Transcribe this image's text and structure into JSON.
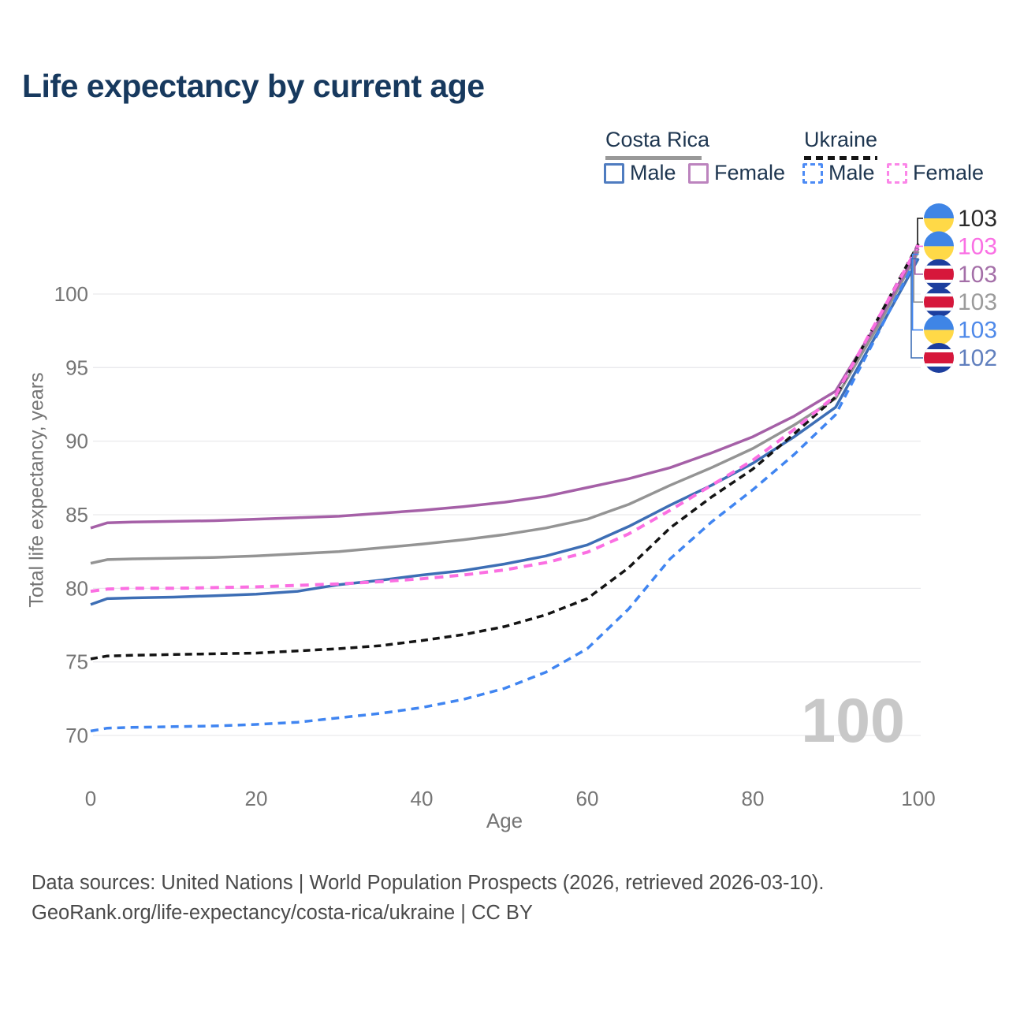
{
  "title": "Life expectancy by current age",
  "watermark": "100",
  "legend": {
    "groups": [
      {
        "label": "Costa Rica",
        "underline_color": "#999999",
        "underline_dashed": false,
        "items": [
          {
            "label": "Male",
            "color": "#4f7cc0",
            "dashed": false
          },
          {
            "label": "Female",
            "color": "#bc84be",
            "dashed": false
          }
        ]
      },
      {
        "label": "Ukraine",
        "underline_color": "#141414",
        "underline_dashed": true,
        "items": [
          {
            "label": "Male",
            "color": "#4c8bf5",
            "dashed": true
          },
          {
            "label": "Female",
            "color": "#fb86e8",
            "dashed": true
          }
        ]
      }
    ]
  },
  "axes": {
    "y_label": "Total life expectancy, years",
    "x_label": "Age",
    "y_ticks": [
      70,
      75,
      80,
      85,
      90,
      95,
      100
    ],
    "x_ticks": [
      0,
      20,
      40,
      60,
      80,
      100
    ]
  },
  "footer": {
    "line1": "Data sources: United Nations | World Population Prospects (2026, retrieved 2026-03-10).",
    "line2": "GeoRank.org/life-expectancy/costa-rica/ukraine | CC BY"
  },
  "chart_data": {
    "type": "line",
    "title": "Life expectancy by current age",
    "xlabel": "Age",
    "ylabel": "Total life expectancy, years",
    "xlim": [
      0,
      100
    ],
    "ylim": [
      69,
      104
    ],
    "grid": "horizontal",
    "legend_position": "top-right",
    "x": [
      0,
      2,
      5,
      10,
      15,
      20,
      25,
      30,
      35,
      40,
      45,
      50,
      55,
      60,
      65,
      70,
      75,
      80,
      85,
      90,
      95,
      100
    ],
    "series": [
      {
        "id": "costa_rica_both",
        "name": "Costa Rica — Both sexes",
        "country": "Costa Rica",
        "sex": "both",
        "color": "#949494",
        "dash": null,
        "width": 3.5,
        "values": [
          81.7,
          81.95,
          82.0,
          82.05,
          82.1,
          82.2,
          82.35,
          82.5,
          82.75,
          83.0,
          83.3,
          83.65,
          84.1,
          84.7,
          85.7,
          87.0,
          88.2,
          89.5,
          91.1,
          92.9,
          97.7,
          102.9
        ]
      },
      {
        "id": "costa_rica_female",
        "name": "Costa Rica — Female",
        "country": "Costa Rica",
        "sex": "female",
        "color": "#a560a7",
        "dash": null,
        "width": 3.5,
        "values": [
          84.1,
          84.45,
          84.5,
          84.55,
          84.6,
          84.7,
          84.8,
          84.9,
          85.1,
          85.3,
          85.55,
          85.85,
          86.25,
          86.85,
          87.45,
          88.2,
          89.2,
          90.3,
          91.7,
          93.4,
          98.0,
          103.1
        ]
      },
      {
        "id": "costa_rica_male",
        "name": "Costa Rica — Male",
        "country": "Costa Rica",
        "sex": "male",
        "color": "#3d6eb5",
        "dash": null,
        "width": 3.5,
        "values": [
          78.9,
          79.3,
          79.35,
          79.4,
          79.5,
          79.6,
          79.8,
          80.25,
          80.55,
          80.9,
          81.2,
          81.65,
          82.2,
          82.95,
          84.2,
          85.65,
          87.0,
          88.5,
          90.3,
          92.3,
          97.3,
          102.4
        ]
      },
      {
        "id": "ukraine_both",
        "name": "Ukraine — Both sexes",
        "country": "Ukraine",
        "sex": "both",
        "color": "#141414",
        "dash": "9 6",
        "width": 3.5,
        "values": [
          75.2,
          75.4,
          75.45,
          75.5,
          75.55,
          75.6,
          75.75,
          75.9,
          76.1,
          76.45,
          76.85,
          77.4,
          78.2,
          79.3,
          81.4,
          84.1,
          86.2,
          88.1,
          90.5,
          93.0,
          98.2,
          103.4
        ]
      },
      {
        "id": "ukraine_male",
        "name": "Ukraine — Male",
        "country": "Ukraine",
        "sex": "male",
        "color": "#4085f1",
        "dash": "10 7",
        "width": 3.5,
        "values": [
          70.3,
          70.5,
          70.55,
          70.6,
          70.65,
          70.75,
          70.9,
          71.2,
          71.5,
          71.9,
          72.45,
          73.2,
          74.3,
          75.9,
          78.6,
          82.0,
          84.5,
          86.7,
          89.1,
          91.8,
          97.2,
          102.7
        ]
      },
      {
        "id": "ukraine_female",
        "name": "Ukraine — Female",
        "country": "Ukraine",
        "sex": "female",
        "color": "#fb6fe2",
        "dash": "11 8",
        "width": 4,
        "values": [
          79.8,
          79.95,
          80.0,
          80.0,
          80.05,
          80.1,
          80.2,
          80.3,
          80.45,
          80.65,
          80.9,
          81.25,
          81.75,
          82.45,
          83.7,
          85.3,
          87.0,
          88.7,
          90.8,
          93.1,
          98.2,
          103.3
        ]
      }
    ],
    "end_labels": [
      {
        "text": "103",
        "flag": "ukraine",
        "color": "#2a2a2a",
        "series": "ukraine_both"
      },
      {
        "text": "103",
        "flag": "ukraine",
        "color": "#fa70e4",
        "series": "ukraine_female"
      },
      {
        "text": "103",
        "flag": "costa_rica",
        "color": "#a46fa8",
        "series": "costa_rica_female"
      },
      {
        "text": "103",
        "flag": "costa_rica",
        "color": "#9b9b9b",
        "series": "costa_rica_both"
      },
      {
        "text": "103",
        "flag": "ukraine",
        "color": "#4e89e9",
        "series": "ukraine_male"
      },
      {
        "text": "102",
        "flag": "costa_rica",
        "color": "#607fbe",
        "series": "costa_rica_male"
      }
    ],
    "flag_colors": {
      "ukraine_top": "#3f85e6",
      "ukraine_bottom": "#ffd947",
      "costa_rica_blue": "#1c3e9e",
      "costa_rica_red": "#d6173b",
      "costa_rica_white": "#ffffff"
    }
  }
}
